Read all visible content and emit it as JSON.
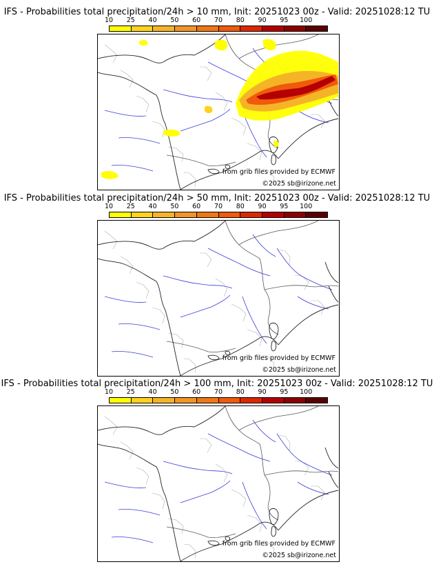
{
  "colorbar": {
    "ticks": [
      "10",
      "25",
      "40",
      "50",
      "60",
      "70",
      "80",
      "90",
      "95",
      "100"
    ],
    "colors": [
      "#ffff00",
      "#ffd21e",
      "#f5b428",
      "#f09628",
      "#f07814",
      "#f05a0a",
      "#dc2800",
      "#b40000",
      "#8c0000",
      "#5a0000"
    ]
  },
  "source_text": "from grib files provided by ECMWF",
  "copyright_text": "©2025 sb@irizone.net",
  "panels": [
    {
      "title": "IFS - Probabilities total precipitation/24h > 10 mm, Init: 20251023 00z - Valid: 20251028:12 TU",
      "threshold_mm": 10
    },
    {
      "title": "IFS - Probabilities total precipitation/24h > 50 mm, Init: 20251023 00z - Valid: 20251028:12 TU",
      "threshold_mm": 50
    },
    {
      "title": "IFS - Probabilities total precipitation/24h > 100 mm, Init: 20251023 00z - Valid: 20251028:12 TU",
      "threshold_mm": 100
    }
  ]
}
